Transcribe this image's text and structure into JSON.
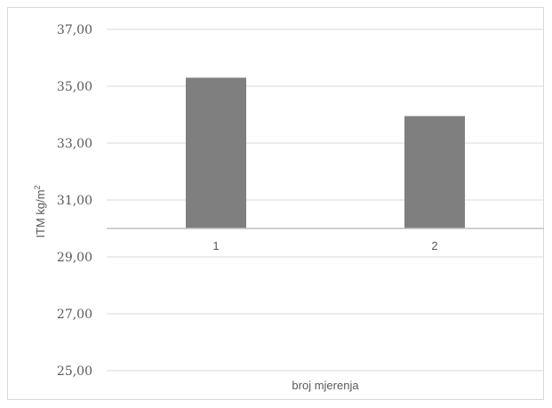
{
  "chart_data": {
    "type": "bar",
    "categories": [
      "1",
      "2"
    ],
    "values": [
      35.3,
      33.95
    ],
    "baseline": 30.0,
    "xlabel": "broj mjerenja",
    "ylabel_main": "ITM kg/m",
    "ylabel_sup": "2",
    "ylim": [
      25,
      37
    ],
    "yticks": [
      "37,00",
      "35,00",
      "33,00",
      "31,00",
      "29,00",
      "27,00",
      "25,00"
    ],
    "ytick_values": [
      37,
      35,
      33,
      31,
      29,
      27,
      25
    ],
    "grid": true,
    "legend": "none",
    "bar_color": "#7f7f7f",
    "grid_color": "#d9d9d9",
    "axis_color": "#bfbfbf"
  }
}
